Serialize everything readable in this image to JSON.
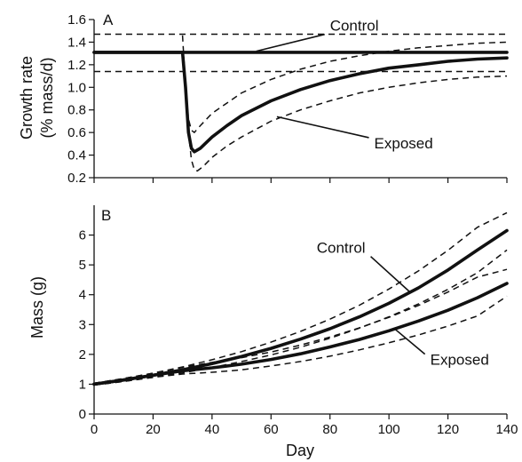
{
  "chart_data": [
    {
      "type": "line",
      "panel_label": "A",
      "xlim": [
        0,
        140
      ],
      "ylim": [
        0.2,
        1.6
      ],
      "yticks": [
        0.2,
        0.4,
        0.6,
        0.8,
        1.0,
        1.2,
        1.4,
        1.6
      ],
      "ytick_labels": [
        "0.2",
        "0.4",
        "0.6",
        "0.8",
        "1.0",
        "1.2",
        "1.4",
        "1.6"
      ],
      "ylabel_line1": "Growth rate",
      "ylabel_line2": "(% mass/d)",
      "series": [
        {
          "name": "Control",
          "style": "solid",
          "x": [
            0,
            140
          ],
          "y": [
            1.31,
            1.31
          ]
        },
        {
          "style": "dashed",
          "x": [
            0,
            140
          ],
          "y": [
            1.47,
            1.47
          ]
        },
        {
          "style": "dashed",
          "x": [
            0,
            140
          ],
          "y": [
            1.14,
            1.14
          ]
        },
        {
          "name": "Exposed",
          "style": "solid",
          "x": [
            0,
            30,
            31,
            32,
            33,
            34,
            36,
            40,
            45,
            50,
            60,
            70,
            80,
            90,
            100,
            110,
            120,
            130,
            140
          ],
          "y": [
            1.31,
            1.31,
            1.0,
            0.6,
            0.46,
            0.43,
            0.46,
            0.56,
            0.66,
            0.75,
            0.88,
            0.98,
            1.06,
            1.12,
            1.17,
            1.2,
            1.23,
            1.25,
            1.26
          ]
        },
        {
          "style": "dashed",
          "x": [
            30,
            31,
            32,
            33,
            34,
            36,
            40,
            45,
            50,
            60,
            70,
            80,
            90,
            100,
            110,
            120,
            130,
            140
          ],
          "y": [
            1.46,
            1.0,
            0.72,
            0.62,
            0.6,
            0.66,
            0.77,
            0.86,
            0.95,
            1.07,
            1.16,
            1.23,
            1.28,
            1.32,
            1.35,
            1.37,
            1.39,
            1.4
          ]
        },
        {
          "style": "dashed",
          "x": [
            31,
            32,
            33,
            34,
            35,
            37,
            40,
            45,
            50,
            60,
            70,
            80,
            90,
            100,
            110,
            120,
            130,
            140
          ],
          "y": [
            1.0,
            0.6,
            0.36,
            0.27,
            0.26,
            0.3,
            0.38,
            0.48,
            0.56,
            0.7,
            0.8,
            0.88,
            0.95,
            1.0,
            1.04,
            1.07,
            1.09,
            1.1
          ]
        }
      ],
      "annotations": [
        {
          "text": "Control",
          "x": 80,
          "y": 1.5,
          "tip_x": 55,
          "tip_y": 1.32
        },
        {
          "text": "Exposed",
          "x": 95,
          "y": 0.46,
          "tip_x": 62,
          "tip_y": 0.74
        }
      ]
    },
    {
      "type": "line",
      "panel_label": "B",
      "xlim": [
        0,
        140
      ],
      "ylim": [
        0,
        7
      ],
      "xticks": [
        0,
        20,
        40,
        60,
        80,
        100,
        120,
        140
      ],
      "xtick_labels": [
        "0",
        "20",
        "40",
        "60",
        "80",
        "100",
        "120",
        "140"
      ],
      "yticks": [
        0,
        1,
        2,
        3,
        4,
        5,
        6
      ],
      "ytick_labels": [
        "0",
        "1",
        "2",
        "3",
        "4",
        "5",
        "6"
      ],
      "xlabel": "Day",
      "ylabel": "Mass (g)",
      "series": [
        {
          "name": "Control",
          "style": "solid",
          "x": [
            0,
            10,
            20,
            30,
            40,
            50,
            60,
            70,
            80,
            90,
            100,
            110,
            120,
            130,
            140
          ],
          "y": [
            1.0,
            1.14,
            1.3,
            1.48,
            1.69,
            1.93,
            2.2,
            2.51,
            2.86,
            3.26,
            3.71,
            4.23,
            4.83,
            5.5,
            6.15
          ]
        },
        {
          "style": "dashed",
          "x": [
            0,
            10,
            20,
            30,
            40,
            50,
            60,
            70,
            80,
            90,
            100,
            110,
            120,
            130,
            140
          ],
          "y": [
            1.03,
            1.19,
            1.37,
            1.58,
            1.82,
            2.09,
            2.41,
            2.77,
            3.18,
            3.65,
            4.19,
            4.8,
            5.49,
            6.26,
            6.75
          ]
        },
        {
          "style": "dashed",
          "x": [
            0,
            10,
            20,
            30,
            40,
            50,
            60,
            70,
            80,
            90,
            100,
            110,
            120,
            130,
            140
          ],
          "y": [
            0.97,
            1.09,
            1.23,
            1.38,
            1.56,
            1.76,
            1.98,
            2.24,
            2.54,
            2.88,
            3.26,
            3.69,
            4.18,
            4.74,
            5.5
          ]
        },
        {
          "name": "Exposed",
          "style": "solid",
          "x": [
            0,
            10,
            20,
            30,
            40,
            50,
            60,
            70,
            80,
            90,
            100,
            110,
            120,
            130,
            140
          ],
          "y": [
            1.0,
            1.14,
            1.3,
            1.45,
            1.55,
            1.67,
            1.83,
            2.02,
            2.25,
            2.5,
            2.79,
            3.12,
            3.48,
            3.9,
            4.38
          ]
        },
        {
          "style": "dashed",
          "x": [
            0,
            10,
            20,
            30,
            40,
            50,
            60,
            70,
            80,
            90,
            100,
            110,
            120,
            130,
            140
          ],
          "y": [
            1.03,
            1.19,
            1.37,
            1.56,
            1.73,
            1.89,
            2.08,
            2.31,
            2.58,
            2.89,
            3.24,
            3.64,
            4.09,
            4.59,
            4.85
          ]
        },
        {
          "style": "dashed",
          "x": [
            0,
            10,
            20,
            30,
            40,
            50,
            60,
            70,
            80,
            90,
            100,
            110,
            120,
            130,
            140
          ],
          "y": [
            0.97,
            1.09,
            1.23,
            1.34,
            1.4,
            1.48,
            1.61,
            1.76,
            1.94,
            2.15,
            2.39,
            2.65,
            2.95,
            3.29,
            3.95
          ]
        }
      ],
      "annotations": [
        {
          "text": "Control",
          "x": 92,
          "y": 5.4,
          "tip_x": 107,
          "tip_y": 4.1
        },
        {
          "text": "Exposed",
          "x": 114,
          "y": 1.65,
          "tip_x": 102,
          "tip_y": 2.85
        }
      ]
    }
  ]
}
